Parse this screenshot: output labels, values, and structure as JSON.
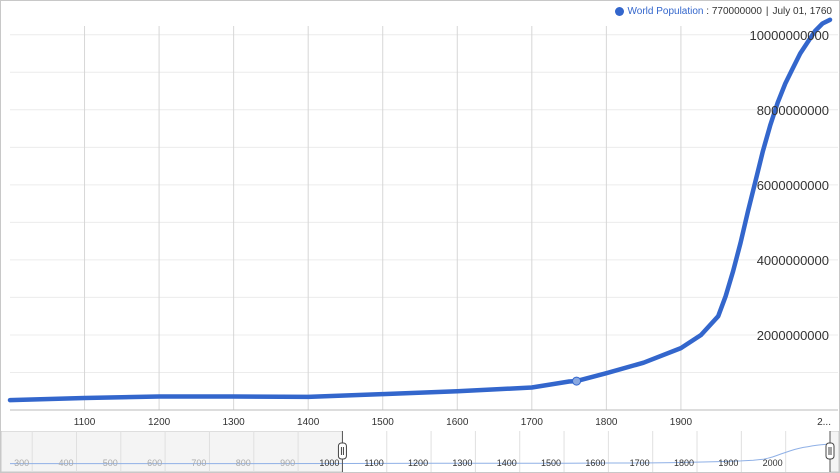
{
  "legend": {
    "series_label": "World Population",
    "value": "770000000",
    "date": "July 01, 1760",
    "color": "#3366cc"
  },
  "chart_data": {
    "type": "line",
    "title": "",
    "xlabel": "",
    "ylabel": "",
    "xlim": [
      1000,
      2100
    ],
    "ylim": [
      0,
      10500000000
    ],
    "x_ticks": [
      "1100",
      "1200",
      "1300",
      "1400",
      "1500",
      "1600",
      "1700",
      "1800",
      "1900"
    ],
    "x_tick_partial": "2...",
    "y_ticks": [
      "2000000000",
      "4000000000",
      "6000000000",
      "8000000000",
      "10000000000"
    ],
    "grid": true,
    "legend_position": "top-right",
    "series": [
      {
        "color": "#3366cc",
        "x": [
          1000,
          1100,
          1200,
          1300,
          1400,
          1500,
          1600,
          1650,
          1700,
          1750,
          1760,
          1800,
          1850,
          1900,
          1927,
          1950,
          1960,
          1970,
          1980,
          1990,
          2000,
          2010,
          2020,
          2030,
          2040,
          2050,
          2060,
          2070,
          2080,
          2090,
          2100
        ],
        "y": [
          265000000,
          320000000,
          360000000,
          360000000,
          350000000,
          425000000,
          500000000,
          550000000,
          600000000,
          760000000,
          770000000,
          980000000,
          1260000000,
          1650000000,
          2000000000,
          2500000000,
          3030000000,
          3700000000,
          4450000000,
          5300000000,
          6100000000,
          6900000000,
          7600000000,
          8200000000,
          8700000000,
          9100000000,
          9500000000,
          9800000000,
          10100000000,
          10300000000,
          10400000000
        ]
      }
    ],
    "highlight_point": {
      "x": 1760,
      "y": 770000000
    }
  },
  "range_selector": {
    "labels": [
      "300",
      "400",
      "500",
      "600",
      "700",
      "800",
      "900",
      "1000",
      "1100",
      "1200",
      "1300",
      "1400",
      "1500",
      "1600",
      "1700",
      "1800",
      "1900",
      "2000",
      "21..."
    ],
    "range": [
      1000,
      2100
    ]
  }
}
